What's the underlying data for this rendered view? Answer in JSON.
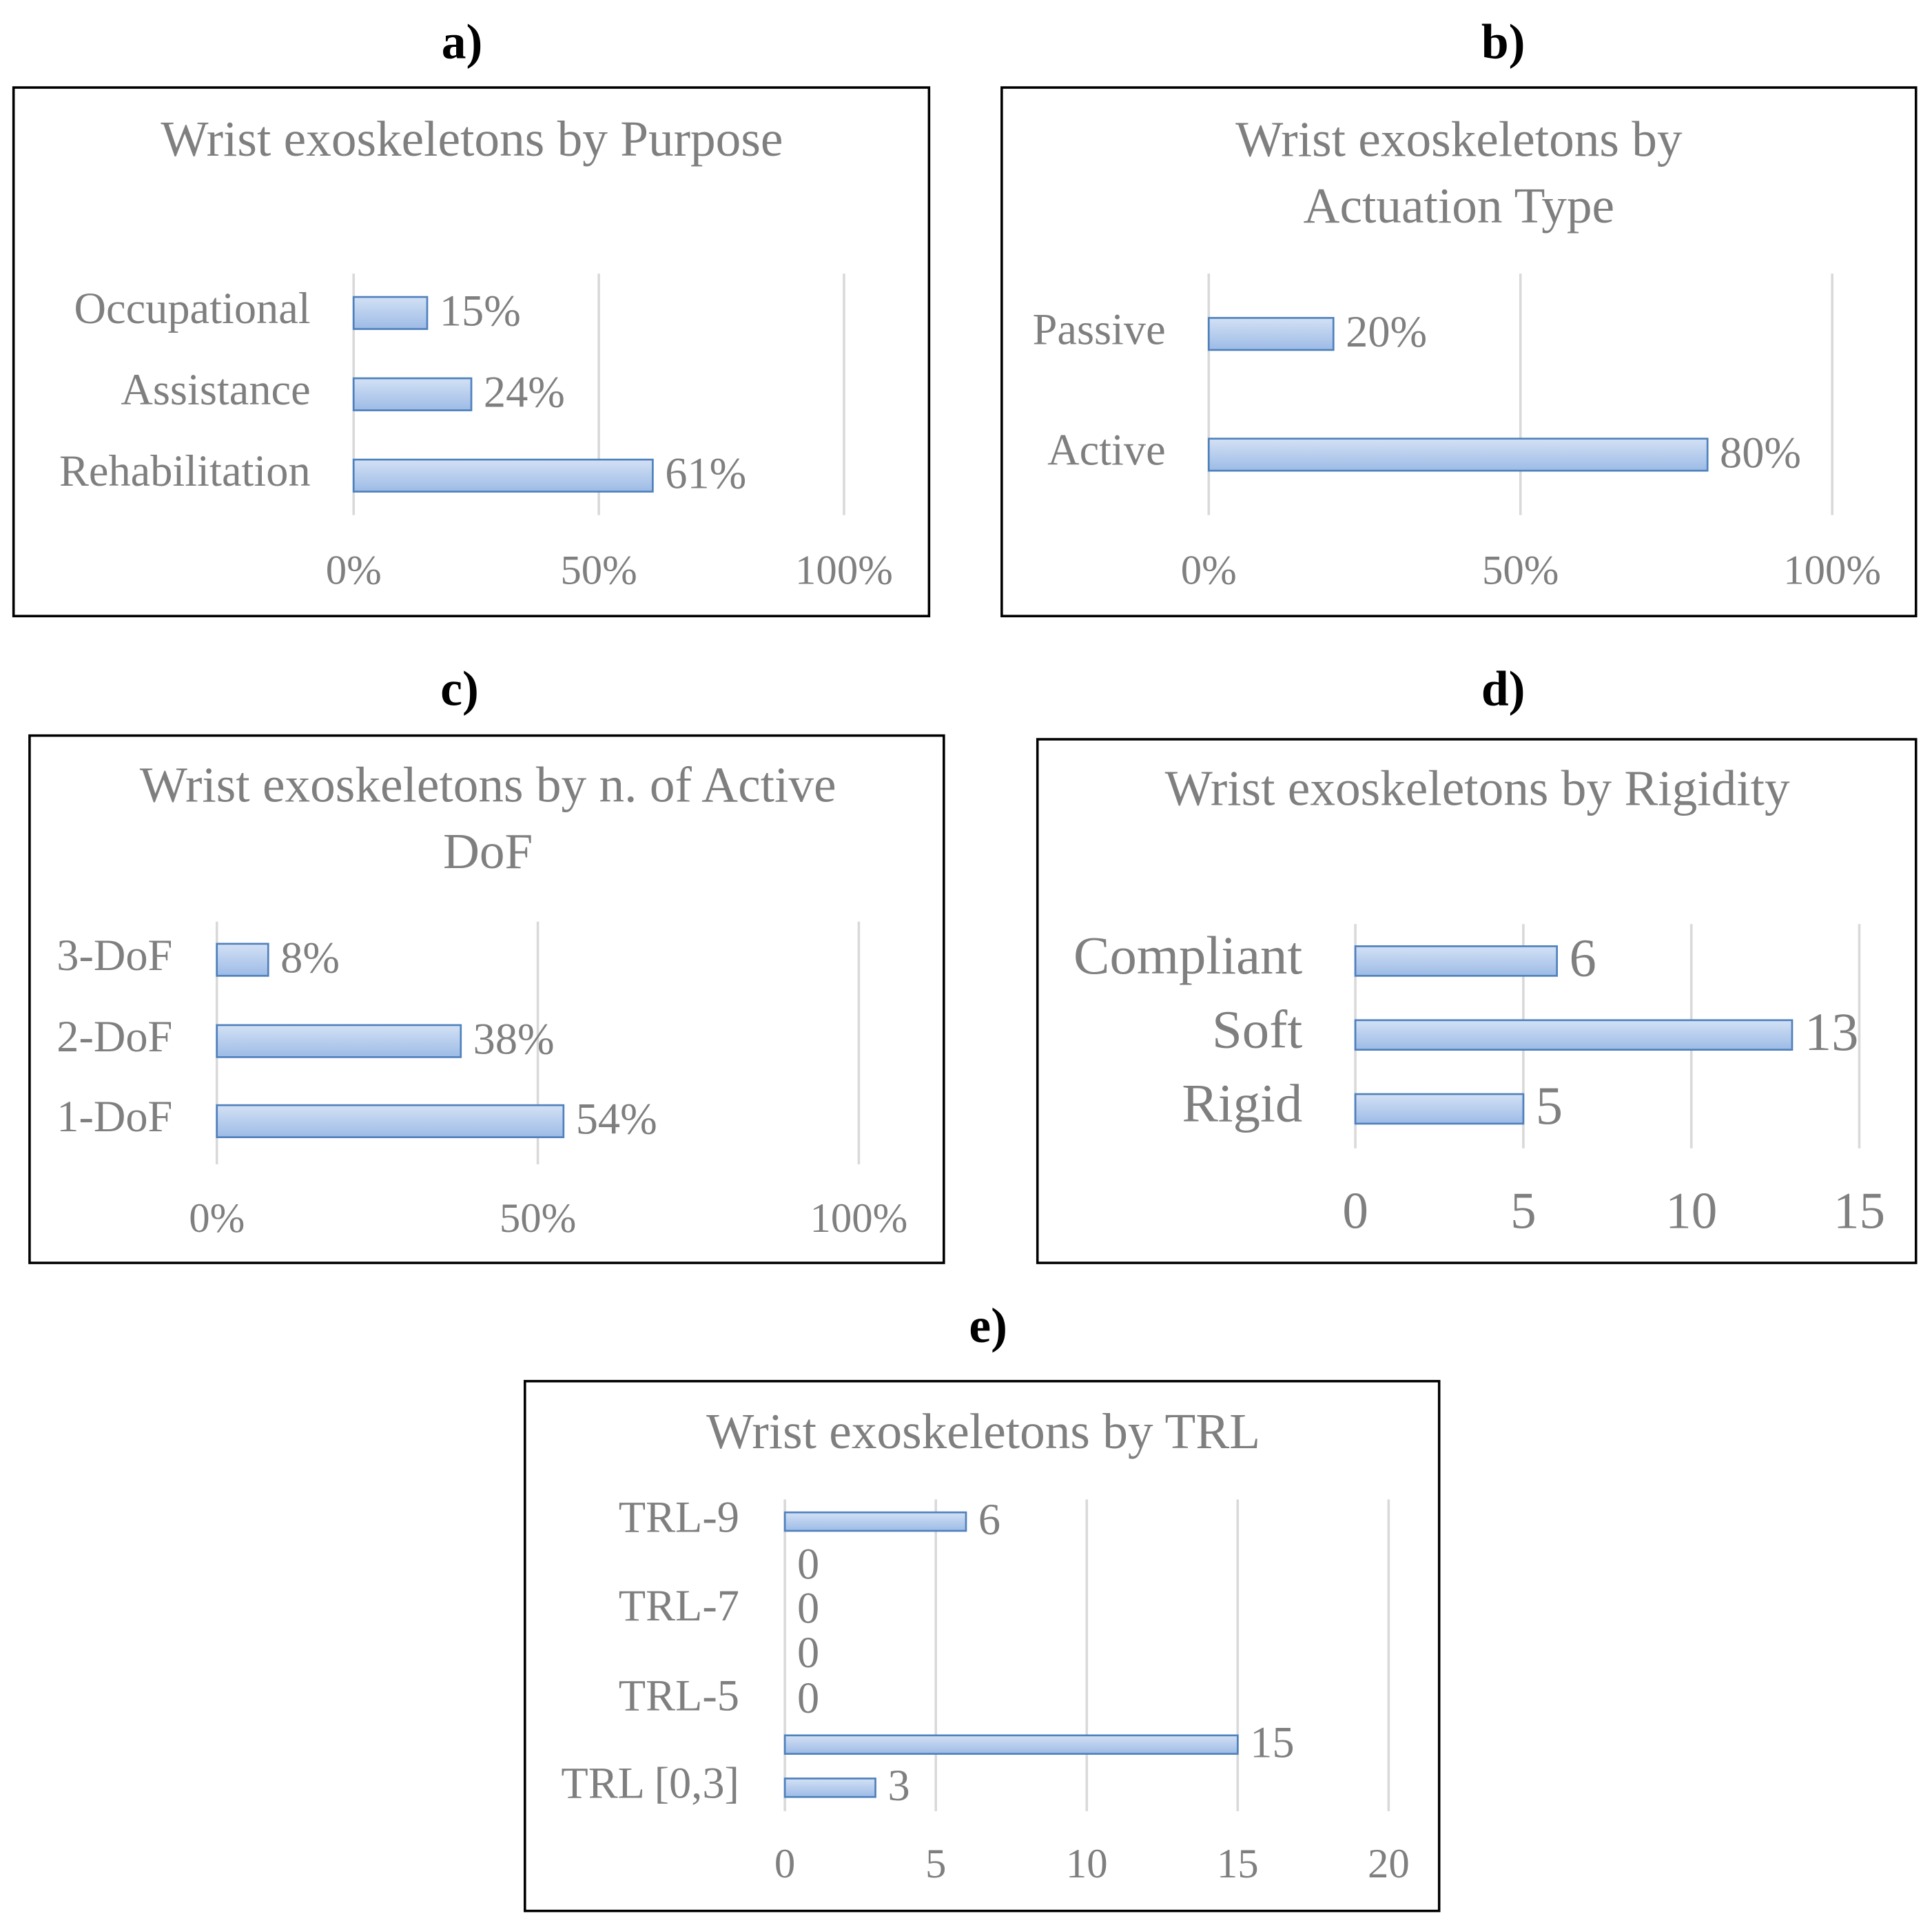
{
  "chart_data": [
    {
      "type": "bar",
      "label": "a)",
      "title": "Wrist exoskeletons by Purpose",
      "categories": [
        "Occupational",
        "Assistance",
        "Rehabilitation"
      ],
      "values": [
        15,
        24,
        61
      ],
      "value_labels": [
        "15%",
        "24%",
        "61%"
      ],
      "xlim": [
        0,
        100
      ],
      "xticks": [
        {
          "value": 0,
          "label": "0%"
        },
        {
          "value": 50,
          "label": "50%"
        },
        {
          "value": 100,
          "label": "100%"
        }
      ],
      "color": "#b4cdee",
      "grid": true
    },
    {
      "type": "bar",
      "label": "b)",
      "title": "Wrist exoskeletons by Actuation Type",
      "categories": [
        "Passive",
        "Active"
      ],
      "values": [
        20,
        80
      ],
      "value_labels": [
        "20%",
        "80%"
      ],
      "xlim": [
        0,
        100
      ],
      "xticks": [
        {
          "value": 0,
          "label": "0%"
        },
        {
          "value": 50,
          "label": "50%"
        },
        {
          "value": 100,
          "label": "100%"
        }
      ],
      "color": "#b4cdee",
      "grid": true
    },
    {
      "type": "bar",
      "label": "c)",
      "title": "Wrist exoskeletons by n. of Active DoF",
      "categories": [
        "3-DoF",
        "2-DoF",
        "1-DoF"
      ],
      "values": [
        8,
        38,
        54
      ],
      "value_labels": [
        "8%",
        "38%",
        "54%"
      ],
      "xlim": [
        0,
        100
      ],
      "xticks": [
        {
          "value": 0,
          "label": "0%"
        },
        {
          "value": 50,
          "label": "50%"
        },
        {
          "value": 100,
          "label": "100%"
        }
      ],
      "color": "#b4cdee",
      "grid": true
    },
    {
      "type": "bar",
      "label": "d)",
      "title": "Wrist exoskeletons by Rigidity",
      "categories": [
        "Compliant",
        "Soft",
        "Rigid"
      ],
      "values": [
        6,
        13,
        5
      ],
      "xlim": [
        0,
        15
      ],
      "xticks": [
        0,
        5,
        10,
        15
      ],
      "color": "#b4cdee",
      "grid": true
    },
    {
      "type": "bar",
      "label": "e)",
      "title": "Wrist exoskeletons by TRL",
      "categories": [
        "TRL-9",
        null,
        "TRL-7",
        null,
        "TRL-5",
        null,
        "TRL [0,3]"
      ],
      "values": [
        6,
        0,
        0,
        0,
        0,
        15,
        3
      ],
      "xlim": [
        0,
        20
      ],
      "xticks": [
        0,
        5,
        10,
        15,
        20
      ],
      "color": "#b4cdee",
      "grid": true
    }
  ]
}
